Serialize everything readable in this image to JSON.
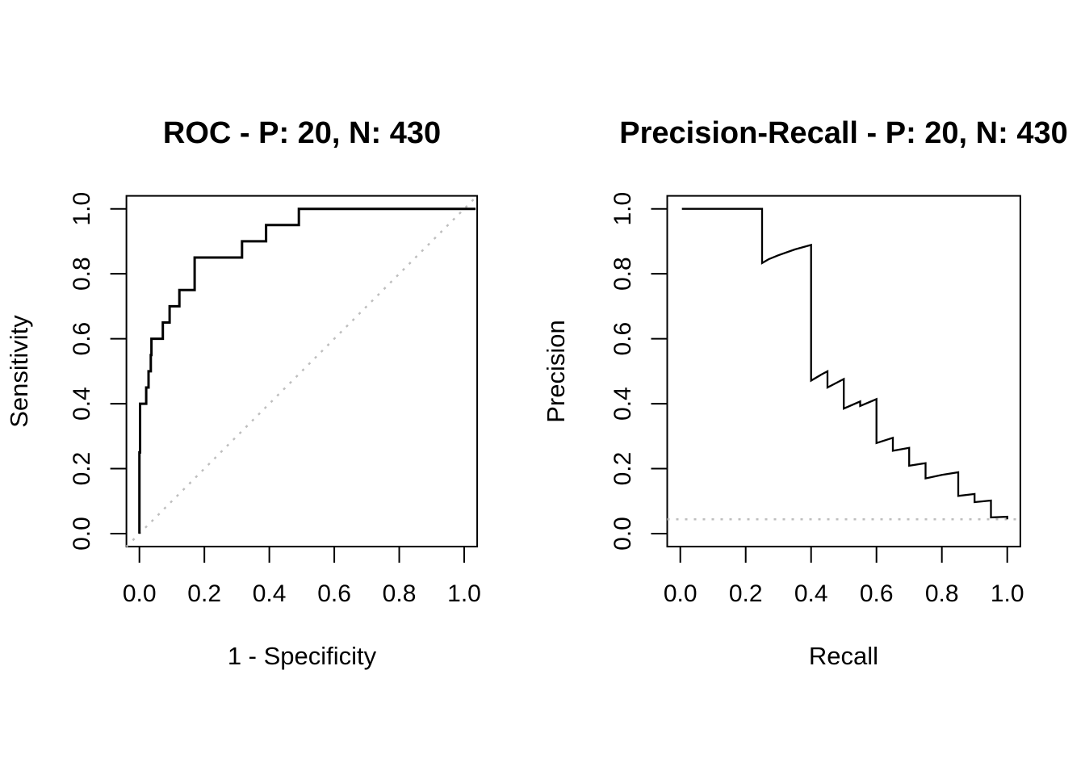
{
  "figure": {
    "background": "#ffffff",
    "line_color": "#000000",
    "ref_line_color": "#bebebe"
  },
  "panels": [
    {
      "id": "roc",
      "title": "ROC - P: 20, N: 430",
      "xlabel": "1 - Specificity",
      "ylabel": "Sensitivity",
      "x_ticks": [
        "0.0",
        "0.2",
        "0.4",
        "0.6",
        "0.8",
        "1.0"
      ],
      "y_ticks": [
        "0.0",
        "0.2",
        "0.4",
        "0.6",
        "0.8",
        "1.0"
      ],
      "chart_data": {
        "type": "line",
        "subtype": "step-roc",
        "title": "ROC - P: 20, N: 430",
        "xlabel": "1 - Specificity",
        "ylabel": "Sensitivity",
        "xlim": [
          0,
          1
        ],
        "ylim": [
          0,
          1
        ],
        "grid": false,
        "legend": "none",
        "positives": 20,
        "negatives": 430,
        "points": [
          [
            0.0,
            0.0
          ],
          [
            0.0,
            0.25
          ],
          [
            0.002,
            0.25
          ],
          [
            0.002,
            0.4
          ],
          [
            0.021,
            0.4
          ],
          [
            0.021,
            0.45
          ],
          [
            0.028,
            0.45
          ],
          [
            0.028,
            0.5
          ],
          [
            0.035,
            0.5
          ],
          [
            0.035,
            0.55
          ],
          [
            0.037,
            0.55
          ],
          [
            0.037,
            0.6
          ],
          [
            0.072,
            0.6
          ],
          [
            0.072,
            0.65
          ],
          [
            0.093,
            0.65
          ],
          [
            0.093,
            0.7
          ],
          [
            0.123,
            0.7
          ],
          [
            0.123,
            0.75
          ],
          [
            0.17,
            0.75
          ],
          [
            0.17,
            0.85
          ],
          [
            0.316,
            0.85
          ],
          [
            0.316,
            0.9
          ],
          [
            0.39,
            0.9
          ],
          [
            0.39,
            0.95
          ],
          [
            0.491,
            0.95
          ],
          [
            0.491,
            1.0
          ],
          [
            1.035,
            1.0
          ]
        ],
        "reference_line": {
          "kind": "diagonal",
          "from": [
            0,
            0
          ],
          "to": [
            1,
            1
          ],
          "style": "dotted",
          "color": "#bebebe"
        }
      }
    },
    {
      "id": "pr",
      "title": "Precision-Recall - P: 20, N: 430",
      "xlabel": "Recall",
      "ylabel": "Precision",
      "x_ticks": [
        "0.0",
        "0.2",
        "0.4",
        "0.6",
        "0.8",
        "1.0"
      ],
      "y_ticks": [
        "0.0",
        "0.2",
        "0.4",
        "0.6",
        "0.8",
        "1.0"
      ],
      "chart_data": {
        "type": "line",
        "subtype": "precision-recall",
        "title": "Precision-Recall - P: 20, N: 430",
        "xlabel": "Recall",
        "ylabel": "Precision",
        "xlim": [
          0,
          1
        ],
        "ylim": [
          0,
          1
        ],
        "grid": false,
        "legend": "none",
        "positives": 20,
        "negatives": 430,
        "points": [
          [
            0.005,
            1.0
          ],
          [
            0.25,
            1.0
          ],
          [
            0.25,
            0.833
          ],
          [
            0.27,
            0.845
          ],
          [
            0.3,
            0.857
          ],
          [
            0.35,
            0.875
          ],
          [
            0.4,
            0.889
          ],
          [
            0.4,
            0.471
          ],
          [
            0.43,
            0.489
          ],
          [
            0.45,
            0.5
          ],
          [
            0.45,
            0.45
          ],
          [
            0.5,
            0.476
          ],
          [
            0.5,
            0.385
          ],
          [
            0.55,
            0.407
          ],
          [
            0.55,
            0.393
          ],
          [
            0.6,
            0.414
          ],
          [
            0.6,
            0.279
          ],
          [
            0.65,
            0.295
          ],
          [
            0.65,
            0.255
          ],
          [
            0.7,
            0.264
          ],
          [
            0.7,
            0.209
          ],
          [
            0.75,
            0.217
          ],
          [
            0.75,
            0.17
          ],
          [
            0.8,
            0.181
          ],
          [
            0.85,
            0.189
          ],
          [
            0.85,
            0.116
          ],
          [
            0.9,
            0.122
          ],
          [
            0.9,
            0.097
          ],
          [
            0.95,
            0.102
          ],
          [
            0.95,
            0.05
          ],
          [
            1.0,
            0.052
          ],
          [
            1.0,
            0.044
          ]
        ],
        "reference_line": {
          "kind": "horizontal",
          "y": 0.044,
          "style": "dotted",
          "color": "#bebebe"
        }
      }
    }
  ]
}
